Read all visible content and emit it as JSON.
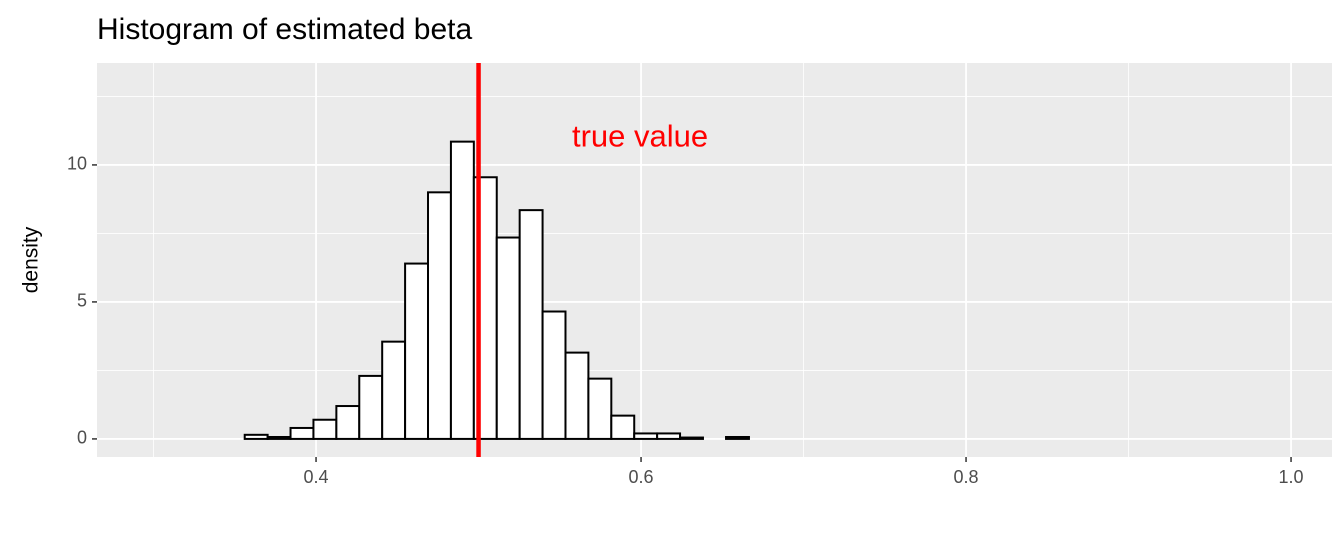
{
  "chart_data": {
    "type": "histogram",
    "title": "Histogram of estimated beta",
    "y_label": "density",
    "bins": [
      0.2997,
      0.3138,
      0.3279,
      0.342,
      0.3561,
      0.3702,
      0.3843,
      0.3984,
      0.4125,
      0.4266,
      0.4407,
      0.4548,
      0.4689,
      0.483,
      0.4971,
      0.5112,
      0.5253,
      0.5394,
      0.5535,
      0.5676,
      0.5817,
      0.5958,
      0.6099,
      0.624,
      0.6381,
      0.6523,
      0.6664,
      0.6805,
      0.6946,
      0.7087,
      0.7228,
      0.7369,
      0.751,
      0.7651,
      0.7792,
      0.7933,
      0.8074,
      0.8215,
      0.8356,
      0.8497,
      0.8638,
      0.8779,
      0.892,
      0.9061,
      0.9202,
      0.9343,
      0.9484,
      0.9625,
      0.9766
    ],
    "values": [
      0,
      0,
      0,
      0,
      0.15,
      0.07,
      0.4,
      0.7,
      1.2,
      2.3,
      3.55,
      6.4,
      9.0,
      10.85,
      9.55,
      7.35,
      8.35,
      4.65,
      3.15,
      2.2,
      0.85,
      0.2,
      0.2,
      0.05,
      0,
      0.07,
      0,
      0,
      0,
      0,
      0,
      0,
      0,
      0,
      0,
      0,
      0,
      0,
      0,
      0,
      0,
      0,
      0,
      0,
      0,
      0,
      0,
      0
    ],
    "color": "#ffffff",
    "edge_color": "#000000",
    "xlim": [
      0.2652,
      1.0252
    ],
    "xticks": [
      {
        "value": 0.4,
        "label": "0.4"
      },
      {
        "value": 0.6,
        "label": "0.6"
      },
      {
        "value": 0.8,
        "label": "0.8"
      },
      {
        "value": 1.0,
        "label": "1.0"
      }
    ],
    "ylim": [
      -0.66,
      13.72
    ],
    "yticks": [
      0,
      5,
      10
    ],
    "grid": true,
    "vline": {
      "x": 0.5,
      "color": "#ff0000"
    },
    "annotation": {
      "text": "true value",
      "x": 0.5994,
      "y": 10.98,
      "color": "#ff0000"
    }
  }
}
